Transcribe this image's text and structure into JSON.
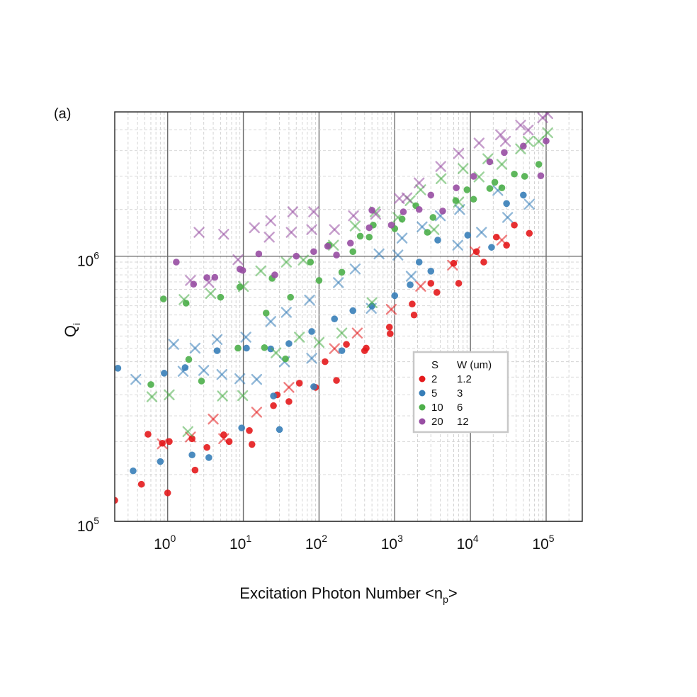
{
  "chart_data": {
    "type": "scatter",
    "panel_label": "(a)",
    "xlabel_main": "Excitation Photon Number <n",
    "xlabel_sub": "p",
    "xlabel_end": ">",
    "ylabel_main": "Q",
    "ylabel_sub": "i",
    "x_scale": "log",
    "y_scale": "log",
    "xlim": [
      0.2,
      300000
    ],
    "ylim": [
      100000,
      3500000
    ],
    "x_tick_exponents": [
      "0",
      "1",
      "2",
      "3",
      "4",
      "5"
    ],
    "y_tick_exponents": [
      "5",
      "6"
    ],
    "tick_base": "10",
    "grid": true,
    "legend": {
      "placement": "center-right",
      "header_s": "S",
      "header_w": "W (um)",
      "entries": [
        {
          "s": "2",
          "w": "1.2",
          "color": "#e41a1c"
        },
        {
          "s": "5",
          "w": "3",
          "color": "#377eb8"
        },
        {
          "s": "10",
          "w": "6",
          "color": "#4daf4a"
        },
        {
          "s": "20",
          "w": "12",
          "color": "#984ea3"
        }
      ]
    },
    "series": [
      {
        "color": "#e41a1c",
        "marker": "circle",
        "points": [
          [
            0.2,
            120000
          ],
          [
            0.45,
            138000
          ],
          [
            0.55,
            213000
          ],
          [
            0.85,
            197000
          ],
          [
            1.0,
            128000
          ],
          [
            1.05,
            200000
          ],
          [
            2.1,
            205000
          ],
          [
            2.3,
            156000
          ],
          [
            3.3,
            190000
          ],
          [
            5.5,
            212000
          ],
          [
            6.5,
            200000
          ],
          [
            12,
            220000
          ],
          [
            13,
            195000
          ],
          [
            25,
            273000
          ],
          [
            28,
            300000
          ],
          [
            40,
            283000
          ],
          [
            55,
            332000
          ],
          [
            90,
            320000
          ],
          [
            120,
            400000
          ],
          [
            170,
            340000
          ],
          [
            230,
            465000
          ],
          [
            400,
            440000
          ],
          [
            420,
            450000
          ],
          [
            850,
            540000
          ],
          [
            870,
            510000
          ],
          [
            1700,
            660000
          ],
          [
            1800,
            600000
          ],
          [
            3000,
            790000
          ],
          [
            3600,
            730000
          ],
          [
            6000,
            940000
          ],
          [
            7000,
            790000
          ],
          [
            12000,
            1040000
          ],
          [
            15000,
            950000
          ],
          [
            22000,
            1180000
          ],
          [
            30000,
            1100000
          ],
          [
            38000,
            1310000
          ],
          [
            60000,
            1220000
          ]
        ]
      },
      {
        "color": "#e41a1c",
        "marker": "x",
        "points": [
          [
            0.85,
            196000
          ],
          [
            2.0,
            208000
          ],
          [
            4.0,
            243000
          ],
          [
            5.5,
            205000
          ],
          [
            15,
            258000
          ],
          [
            40,
            320000
          ],
          [
            160,
            448000
          ],
          [
            320,
            513000
          ],
          [
            900,
            630000
          ],
          [
            2200,
            770000
          ],
          [
            5800,
            925000
          ],
          [
            11500,
            1040000
          ],
          [
            26000,
            1150000
          ]
        ]
      },
      {
        "color": "#377eb8",
        "marker": "circle",
        "points": [
          [
            0.22,
            378000
          ],
          [
            0.35,
            155000
          ],
          [
            0.8,
            168000
          ],
          [
            0.9,
            362000
          ],
          [
            1.7,
            380000
          ],
          [
            2.1,
            178000
          ],
          [
            3.5,
            174000
          ],
          [
            4.5,
            440000
          ],
          [
            9.5,
            225000
          ],
          [
            11,
            450000
          ],
          [
            23,
            447000
          ],
          [
            25,
            297000
          ],
          [
            30,
            222000
          ],
          [
            40,
            468000
          ],
          [
            85,
            322000
          ],
          [
            80,
            520000
          ],
          [
            160,
            580000
          ],
          [
            200,
            440000
          ],
          [
            280,
            623000
          ],
          [
            500,
            649000
          ],
          [
            1000,
            710000
          ],
          [
            1600,
            780000
          ],
          [
            2100,
            950000
          ],
          [
            3000,
            878000
          ],
          [
            3700,
            1150000
          ],
          [
            9200,
            1200000
          ],
          [
            19000,
            1080000
          ],
          [
            30000,
            1580000
          ],
          [
            50000,
            1700000
          ]
        ]
      },
      {
        "color": "#377eb8",
        "marker": "x",
        "points": [
          [
            0.38,
            343000
          ],
          [
            1.2,
            465000
          ],
          [
            1.6,
            368000
          ],
          [
            2.3,
            450000
          ],
          [
            3.0,
            371000
          ],
          [
            4.5,
            485000
          ],
          [
            5.2,
            358000
          ],
          [
            9.0,
            345000
          ],
          [
            10.8,
            495000
          ],
          [
            15,
            343000
          ],
          [
            23,
            567000
          ],
          [
            35,
            400000
          ],
          [
            37,
            614000
          ],
          [
            75,
            683000
          ],
          [
            80,
            412000
          ],
          [
            180,
            795000
          ],
          [
            300,
            895000
          ],
          [
            490,
            636000
          ],
          [
            620,
            1020000
          ],
          [
            1100,
            1010000
          ],
          [
            1250,
            1170000
          ],
          [
            1650,
            840000
          ],
          [
            2300,
            1290000
          ],
          [
            4000,
            1420000
          ],
          [
            6800,
            1100000
          ],
          [
            7200,
            1500000
          ],
          [
            14000,
            1230000
          ],
          [
            23000,
            1770000
          ],
          [
            31000,
            1400000
          ],
          [
            60000,
            1570000
          ]
        ]
      },
      {
        "color": "#4daf4a",
        "marker": "circle",
        "points": [
          [
            0.6,
            328000
          ],
          [
            0.88,
            690000
          ],
          [
            1.75,
            665000
          ],
          [
            1.9,
            408000
          ],
          [
            2.8,
            338000
          ],
          [
            5.0,
            700000
          ],
          [
            8.5,
            450000
          ],
          [
            9.0,
            765000
          ],
          [
            19,
            452000
          ],
          [
            20,
            610000
          ],
          [
            24,
            825000
          ],
          [
            36,
            410000
          ],
          [
            42,
            700000
          ],
          [
            77,
            950000
          ],
          [
            100,
            810000
          ],
          [
            135,
            1100000
          ],
          [
            200,
            870000
          ],
          [
            280,
            1040000
          ],
          [
            350,
            1190000
          ],
          [
            460,
            1180000
          ],
          [
            520,
            1310000
          ],
          [
            1000,
            1270000
          ],
          [
            1250,
            1380000
          ],
          [
            1900,
            1550000
          ],
          [
            2700,
            1230000
          ],
          [
            3200,
            1400000
          ],
          [
            6400,
            1620000
          ],
          [
            9000,
            1780000
          ],
          [
            11000,
            1640000
          ],
          [
            18000,
            1800000
          ],
          [
            21000,
            1900000
          ],
          [
            26000,
            1810000
          ],
          [
            38000,
            2040000
          ],
          [
            52000,
            2000000
          ],
          [
            80000,
            2220000
          ]
        ]
      },
      {
        "color": "#4daf4a",
        "marker": "x",
        "points": [
          [
            0.62,
            295000
          ],
          [
            1.05,
            300000
          ],
          [
            1.65,
            686000
          ],
          [
            1.85,
            218000
          ],
          [
            3.7,
            723000
          ],
          [
            5.3,
            297000
          ],
          [
            9.8,
            298000
          ],
          [
            10,
            769000
          ],
          [
            17,
            880000
          ],
          [
            27,
            432000
          ],
          [
            37,
            950000
          ],
          [
            55,
            495000
          ],
          [
            62,
            967000
          ],
          [
            100,
            473000
          ],
          [
            155,
            1100000
          ],
          [
            200,
            513000
          ],
          [
            300,
            1300000
          ],
          [
            500,
            668000
          ],
          [
            550,
            1470000
          ],
          [
            1100,
            1400000
          ],
          [
            1600,
            1620000
          ],
          [
            2200,
            1780000
          ],
          [
            3300,
            1260000
          ],
          [
            4100,
            1960000
          ],
          [
            7000,
            1600000
          ],
          [
            8000,
            2140000
          ],
          [
            13000,
            1990000
          ],
          [
            17000,
            2330000
          ],
          [
            26000,
            2220000
          ],
          [
            46000,
            2540000
          ],
          [
            58000,
            2710000
          ],
          [
            80000,
            2710000
          ],
          [
            105000,
            2920000
          ]
        ]
      },
      {
        "color": "#984ea3",
        "marker": "circle",
        "points": [
          [
            1.3,
            950000
          ],
          [
            2.2,
            784000
          ],
          [
            3.3,
            830000
          ],
          [
            4.2,
            832000
          ],
          [
            9.0,
            894000
          ],
          [
            9.8,
            884000
          ],
          [
            16,
            1020000
          ],
          [
            26,
            850000
          ],
          [
            50,
            1000000
          ],
          [
            85,
            1040000
          ],
          [
            130,
            1090000
          ],
          [
            170,
            1010000
          ],
          [
            260,
            1120000
          ],
          [
            460,
            1280000
          ],
          [
            500,
            1490000
          ],
          [
            900,
            1310000
          ],
          [
            1300,
            1470000
          ],
          [
            2100,
            1500000
          ],
          [
            3000,
            1700000
          ],
          [
            4300,
            1480000
          ],
          [
            6500,
            1810000
          ],
          [
            11000,
            2000000
          ],
          [
            18000,
            2270000
          ],
          [
            28000,
            2460000
          ],
          [
            50000,
            2600000
          ],
          [
            85000,
            2010000
          ],
          [
            100000,
            2720000
          ]
        ]
      },
      {
        "color": "#984ea3",
        "marker": "x",
        "points": [
          [
            2.0,
            810000
          ],
          [
            2.6,
            1230000
          ],
          [
            3.5,
            796000
          ],
          [
            5.5,
            1210000
          ],
          [
            8.5,
            970000
          ],
          [
            14,
            1280000
          ],
          [
            22,
            1180000
          ],
          [
            23,
            1360000
          ],
          [
            43,
            1230000
          ],
          [
            45,
            1470000
          ],
          [
            80,
            1260000
          ],
          [
            85,
            1470000
          ],
          [
            160,
            1260000
          ],
          [
            285,
            1420000
          ],
          [
            560,
            1440000
          ],
          [
            1150,
            1650000
          ],
          [
            1450,
            1660000
          ],
          [
            2100,
            1890000
          ],
          [
            4050,
            2180000
          ],
          [
            7000,
            2440000
          ],
          [
            13000,
            2670000
          ],
          [
            25000,
            2870000
          ],
          [
            29000,
            2710000
          ],
          [
            46000,
            3120000
          ],
          [
            58000,
            2990000
          ],
          [
            90000,
            3330000
          ],
          [
            105000,
            3450000
          ]
        ]
      }
    ]
  }
}
